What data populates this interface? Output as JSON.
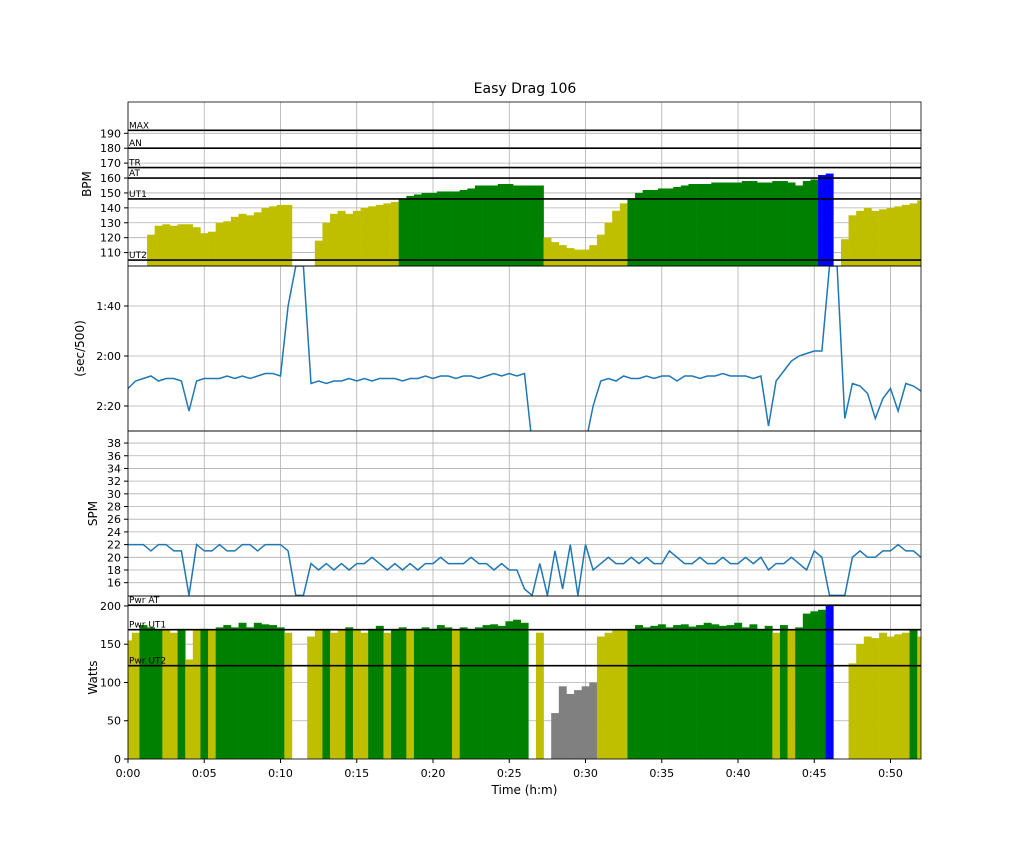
{
  "chart_data": {
    "type": "bar",
    "title": "Easy Drag 106",
    "xlabel": "Time (h:m)",
    "x_start_min": 0,
    "x_step_min": 0.5,
    "xlim": [
      0,
      52
    ],
    "x_ticks": [
      0,
      5,
      10,
      15,
      20,
      25,
      30,
      35,
      40,
      45,
      50
    ],
    "x_tick_labels": [
      "0:00",
      "0:05",
      "0:10",
      "0:15",
      "0:20",
      "0:25",
      "0:30",
      "0:35",
      "0:40",
      "0:45",
      "0:50"
    ],
    "colors": {
      "yellow": "#bfbf00",
      "green": "#008000",
      "blue": "#0000ff",
      "gray": "#808080",
      "line": "#1f77b4",
      "grid": "#b0b0b0"
    },
    "panels": [
      {
        "id": "hr",
        "type": "bar",
        "ylabel": "BPM",
        "ylim": [
          101,
          211
        ],
        "y_ticks": [
          110,
          120,
          130,
          140,
          150,
          160,
          170,
          180,
          190
        ],
        "y_tick_labels": [
          "110",
          "120",
          "130",
          "140",
          "150",
          "160",
          "170",
          "180",
          "190"
        ],
        "zones": [
          {
            "label": "MAX",
            "value": 192
          },
          {
            "label": "AN",
            "value": 180
          },
          {
            "label": "TR",
            "value": 167
          },
          {
            "label": "AT",
            "value": 160
          },
          {
            "label": "UT1",
            "value": 146
          },
          {
            "label": "UT2",
            "value": 105
          }
        ],
        "color_thresholds": {
          "blue": 160,
          "green": 146,
          "yellow": 0
        },
        "values": [
          null,
          null,
          null,
          122,
          128,
          129,
          128,
          129,
          129,
          127,
          123,
          124,
          130,
          131,
          134,
          136,
          135,
          137,
          140,
          141,
          142,
          142,
          null,
          null,
          null,
          118,
          130,
          136,
          138,
          136,
          138,
          140,
          141,
          142,
          143,
          144,
          146,
          148,
          149,
          150,
          150,
          151,
          151,
          151,
          152,
          153,
          155,
          155,
          155,
          156,
          156,
          155,
          155,
          155,
          155,
          120,
          117,
          115,
          113,
          112,
          112,
          115,
          122,
          130,
          138,
          143,
          146,
          150,
          152,
          152,
          153,
          153,
          154,
          155,
          156,
          156,
          156,
          157,
          157,
          157,
          157,
          158,
          158,
          157,
          157,
          158,
          158,
          157,
          155,
          158,
          159,
          162,
          163,
          null,
          119,
          135,
          138,
          140,
          138,
          139,
          140,
          141,
          142,
          143,
          145
        ]
      },
      {
        "id": "pace",
        "type": "line",
        "ylabel": "(sec/500)",
        "ylim": [
          150,
          84
        ],
        "inverted": true,
        "y_ticks": [
          100,
          120,
          140
        ],
        "y_tick_labels": [
          "1:40",
          "2:00",
          "2:20"
        ],
        "values": [
          133,
          130,
          129,
          128,
          130,
          129,
          129,
          130,
          142,
          130,
          129,
          129,
          129,
          128,
          129,
          128,
          129,
          128,
          127,
          127,
          128,
          100,
          84,
          84,
          131,
          130,
          131,
          130,
          130,
          129,
          130,
          129,
          130,
          129,
          129,
          129,
          130,
          129,
          129,
          128,
          129,
          128,
          128,
          129,
          128,
          128,
          129,
          128,
          127,
          128,
          127,
          128,
          127,
          155,
          155,
          155,
          155,
          155,
          155,
          155,
          155,
          140,
          130,
          129,
          130,
          128,
          129,
          129,
          128,
          129,
          128,
          128,
          130,
          128,
          128,
          129,
          128,
          128,
          127,
          128,
          128,
          128,
          129,
          128,
          148,
          130,
          126,
          122,
          120,
          119,
          118,
          118,
          84,
          84,
          145,
          131,
          132,
          135,
          145,
          137,
          133,
          142,
          131,
          132,
          134
        ]
      },
      {
        "id": "spm",
        "type": "line",
        "ylabel": "SPM",
        "ylim": [
          13.9,
          39.9
        ],
        "y_ticks": [
          16,
          18,
          20,
          22,
          24,
          26,
          28,
          30,
          32,
          34,
          36,
          38
        ],
        "y_tick_labels": [
          "16",
          "18",
          "20",
          "22",
          "24",
          "26",
          "28",
          "30",
          "32",
          "34",
          "36",
          "38"
        ],
        "values": [
          22,
          22,
          22,
          21,
          22,
          22,
          21,
          21,
          14,
          22,
          21,
          21,
          22,
          21,
          21,
          22,
          22,
          21,
          22,
          22,
          22,
          21,
          14,
          14,
          19,
          18,
          19,
          18,
          19,
          18,
          19,
          19,
          20,
          19,
          18,
          19,
          18,
          19,
          18,
          19,
          19,
          20,
          19,
          19,
          19,
          20,
          19,
          19,
          18,
          19,
          18,
          18,
          15,
          14,
          19,
          14,
          21,
          15,
          22,
          14,
          22,
          18,
          19,
          20,
          19,
          19,
          20,
          19,
          20,
          19,
          19,
          21,
          20,
          19,
          19,
          20,
          19,
          19,
          20,
          19,
          19,
          20,
          19,
          20,
          18,
          19,
          19,
          20,
          19,
          18,
          21,
          20,
          14,
          14,
          14,
          20,
          21,
          20,
          20,
          21,
          21,
          22,
          21,
          21,
          20
        ]
      },
      {
        "id": "watts",
        "type": "bar",
        "ylabel": "Watts",
        "ylim": [
          0,
          213
        ],
        "y_ticks": [
          0,
          50,
          100,
          150,
          200
        ],
        "y_tick_labels": [
          "0",
          "50",
          "100",
          "150",
          "200"
        ],
        "zones": [
          {
            "label": "Pwr AT",
            "value": 201
          },
          {
            "label": "Pwr UT1",
            "value": 169
          },
          {
            "label": "Pwr UT2",
            "value": 122
          }
        ],
        "color_thresholds": {
          "blue": 200,
          "green": 169,
          "yellow": 122,
          "gray": 0
        },
        "values": [
          155,
          165,
          175,
          172,
          170,
          168,
          165,
          170,
          130,
          168,
          170,
          168,
          172,
          175,
          172,
          178,
          172,
          178,
          176,
          175,
          172,
          165,
          null,
          null,
          160,
          168,
          170,
          165,
          168,
          172,
          168,
          165,
          170,
          174,
          165,
          170,
          172,
          168,
          170,
          172,
          170,
          175,
          172,
          168,
          172,
          170,
          172,
          175,
          176,
          174,
          180,
          182,
          178,
          null,
          165,
          null,
          60,
          95,
          85,
          90,
          95,
          100,
          160,
          165,
          168,
          168,
          170,
          175,
          172,
          174,
          176,
          172,
          175,
          176,
          173,
          175,
          178,
          176,
          174,
          175,
          178,
          172,
          176,
          170,
          174,
          165,
          175,
          168,
          172,
          190,
          193,
          195,
          200,
          null,
          null,
          125,
          150,
          160,
          158,
          165,
          160,
          163,
          165,
          170,
          160
        ]
      }
    ]
  }
}
